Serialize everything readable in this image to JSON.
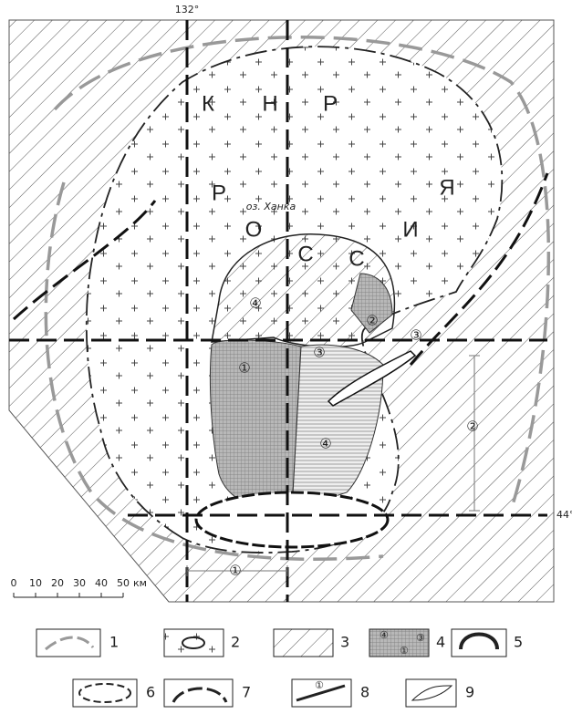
{
  "map": {
    "meridian": "132°",
    "parallel": "44°",
    "country_letters": [
      "К",
      "Н",
      "Р",
      "Р",
      "Я",
      "О",
      "С",
      "С",
      "И"
    ],
    "lake": "оз. Ханка",
    "circled_labels": [
      "④",
      "②",
      "③",
      "③",
      "①",
      "④",
      "②",
      "①"
    ],
    "scale": {
      "ticks": [
        "0",
        "10",
        "20",
        "30",
        "40",
        "50"
      ],
      "unit": "км"
    }
  },
  "legend": {
    "numbers": [
      "1",
      "2",
      "3",
      "4",
      "5",
      "6",
      "7",
      "8",
      "9"
    ],
    "item4_marks": [
      "④",
      "③",
      "①"
    ],
    "item8_mark": "①"
  }
}
